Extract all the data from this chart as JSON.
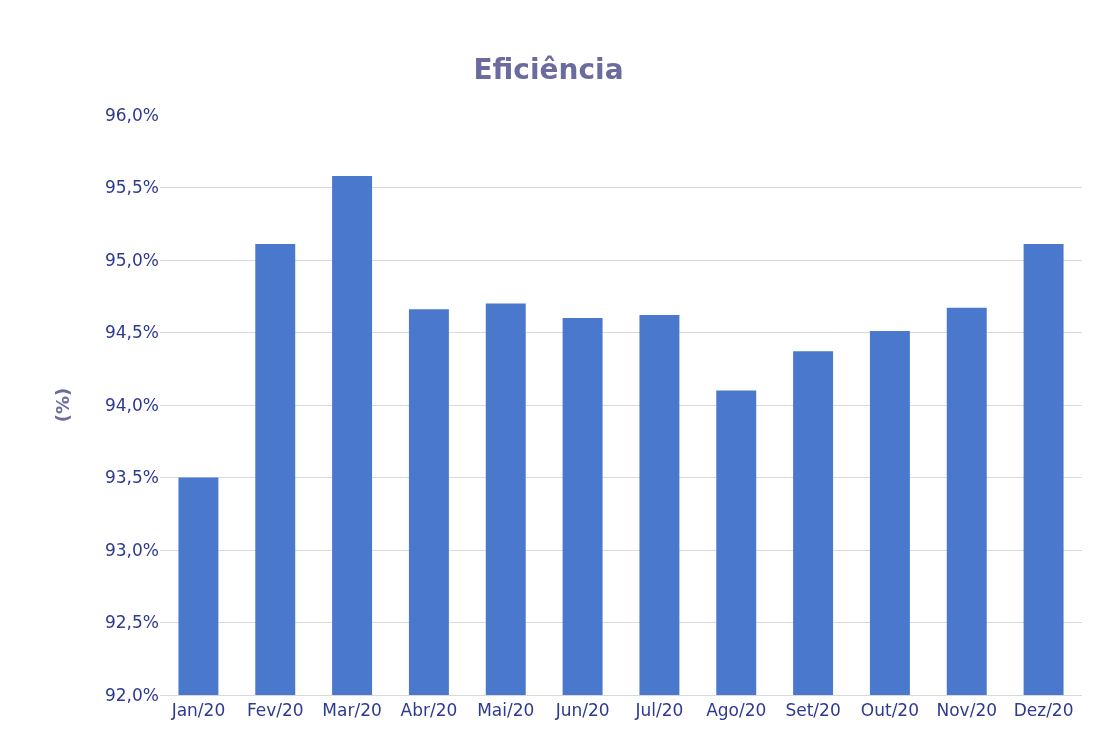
{
  "chart_data": {
    "type": "bar",
    "title": "Eficiência",
    "ylabel": "(%)",
    "categories": [
      "Jan/20",
      "Fev/20",
      "Mar/20",
      "Abr/20",
      "Mai/20",
      "Jun/20",
      "Jul/20",
      "Ago/20",
      "Set/20",
      "Out/20",
      "Nov/20",
      "Dez/20"
    ],
    "values": [
      93.5,
      95.11,
      95.58,
      94.66,
      94.7,
      94.6,
      94.62,
      94.1,
      94.37,
      94.51,
      94.67,
      95.11
    ],
    "color": "#4a78cc",
    "ylim": [
      92,
      96
    ],
    "yticks": [
      {
        "value": 92,
        "label": "92,0%"
      },
      {
        "value": 92.5,
        "label": "92,5%"
      },
      {
        "value": 93,
        "label": "93,0%"
      },
      {
        "value": 93.5,
        "label": "93,5%"
      },
      {
        "value": 94,
        "label": "94,0%"
      },
      {
        "value": 94.5,
        "label": "94,5%"
      },
      {
        "value": 95,
        "label": "95,0%"
      },
      {
        "value": 95.5,
        "label": "95,5%"
      },
      {
        "value": 96,
        "label": "96,0%"
      }
    ],
    "grid": "y"
  }
}
